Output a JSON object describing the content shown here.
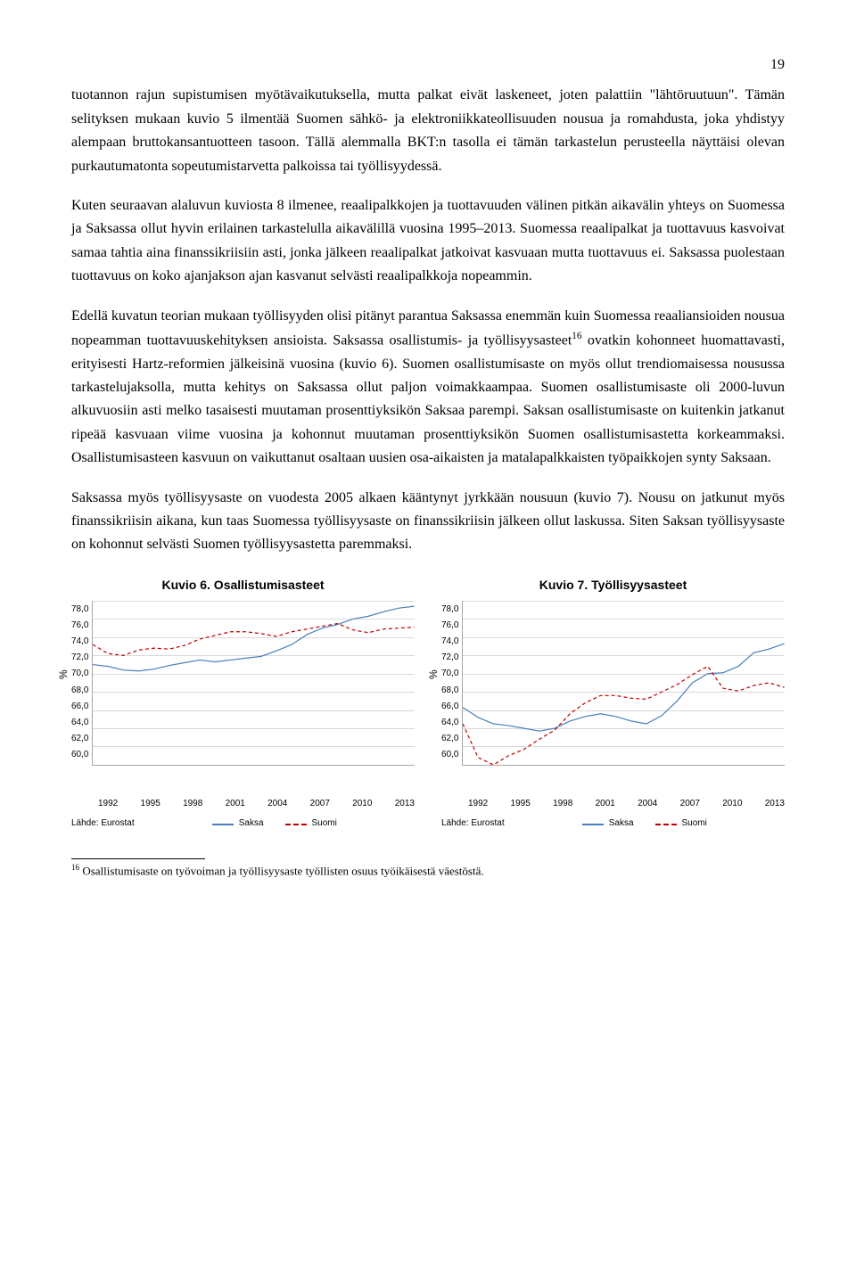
{
  "page_number": "19",
  "paragraphs": {
    "p1": "tuotannon rajun supistumisen myötävaikutuksella, mutta palkat eivät laskeneet, joten palattiin \"lähtöruutuun\". Tämän selityksen mukaan kuvio 5 ilmentää Suomen sähkö- ja elektroniikkateollisuuden nousua ja romahdusta, joka yhdistyy alempaan bruttokansantuotteen tasoon. Tällä alemmalla BKT:n tasolla ei tämän tarkastelun perusteella näyttäisi olevan purkautumatonta sopeutumistarvetta palkoissa tai työllisyydessä.",
    "p2": "Kuten seuraavan alaluvun kuviosta 8 ilmenee, reaalipalkkojen ja tuottavuuden välinen pitkän aikavälin yhteys on Suomessa ja Saksassa ollut hyvin erilainen tarkastelulla aikavälillä vuosina 1995–2013. Suomessa reaalipalkat ja tuottavuus kasvoivat samaa tahtia aina finanssikriisiin asti, jonka jälkeen reaalipalkat jatkoivat kasvuaan mutta tuottavuus ei. Saksassa puolestaan tuottavuus on koko ajanjakson ajan kasvanut selvästi reaalipalkkoja nopeammin.",
    "p3a": "Edellä kuvatun teorian mukaan työllisyyden olisi pitänyt parantua Saksassa enemmän kuin Suomessa reaaliansioiden nousua nopeamman tuottavuuskehityksen ansioista. Saksassa osallistumis- ja työllisyysasteet",
    "p3b": " ovatkin kohonneet huomattavasti, erityisesti Hartz-reformien jälkeisinä vuosina (kuvio 6). Suomen osallistumisaste on myös ollut trendiomaisessa nousussa tarkastelujaksolla, mutta kehitys on Saksassa ollut paljon voimakkaampaa. Suomen osallistumisaste oli 2000-luvun alkuvuosiin asti melko tasaisesti muutaman prosenttiyksikön Saksaa parempi. Saksan osallistumisaste on kuitenkin jatkanut ripeää kasvuaan viime vuosina ja kohonnut muutaman prosenttiyksikön Suomen osallistumisastetta korkeammaksi. Osallistumisasteen kasvuun on vaikuttanut osaltaan uusien osa-aikaisten ja matalapalkkaisten työpaikkojen synty Saksaan.",
    "p4": "Saksassa myös työllisyysaste on vuodesta 2005 alkaen kääntynyt jyrkkään nousuun (kuvio 7). Nousu on jatkunut myös finanssikriisin aikana, kun taas Suomessa työllisyysaste on finanssikriisin jälkeen ollut laskussa. Siten Saksan työllisyysaste on kohonnut selvästi Suomen työllisyysastetta paremmaksi."
  },
  "footnote_ref": "16",
  "footnote_text": " Osallistumisaste on työvoiman ja työllisyysaste työllisten osuus työikäisestä väestöstä.",
  "chart_common": {
    "y_label": "%",
    "y_ticks": [
      "78,0",
      "76,0",
      "74,0",
      "72,0",
      "70,0",
      "68,0",
      "66,0",
      "64,0",
      "62,0",
      "60,0"
    ],
    "x_ticks": [
      "1992",
      "1995",
      "1998",
      "2001",
      "2004",
      "2007",
      "2010",
      "2013"
    ],
    "source_label": "Lähde: Eurostat",
    "series1_name": "Saksa",
    "series2_name": "Suomi",
    "series1_color": "#4a7ebb",
    "series2_color": "#c00000",
    "grid_color": "#d9d9d9",
    "border_color": "#a6a6a6",
    "ylim": [
      60,
      78
    ]
  },
  "chart6": {
    "title": "Kuvio 6. Osallistumisasteet",
    "saksa": [
      71.0,
      70.8,
      70.4,
      70.3,
      70.5,
      70.9,
      71.2,
      71.5,
      71.3,
      71.5,
      71.7,
      71.9,
      72.5,
      73.2,
      74.3,
      75.0,
      75.4,
      76.0,
      76.3,
      76.8,
      77.2,
      77.4
    ],
    "suomi": [
      73.2,
      72.2,
      72.0,
      72.6,
      72.8,
      72.7,
      73.1,
      73.8,
      74.2,
      74.6,
      74.6,
      74.4,
      74.1,
      74.6,
      74.9,
      75.2,
      75.5,
      74.8,
      74.5,
      74.9,
      75.0,
      75.1
    ]
  },
  "chart7": {
    "title": "Kuvio 7. Työllisyysasteet",
    "saksa": [
      66.3,
      65.2,
      64.5,
      64.3,
      64.0,
      63.7,
      64.0,
      64.8,
      65.3,
      65.6,
      65.3,
      64.8,
      64.5,
      65.4,
      67.0,
      69.0,
      70.0,
      70.1,
      70.8,
      72.3,
      72.7,
      73.3
    ],
    "suomi": [
      64.5,
      60.8,
      60.0,
      61.0,
      61.7,
      62.8,
      63.8,
      65.6,
      66.8,
      67.6,
      67.6,
      67.3,
      67.2,
      68.0,
      68.8,
      69.9,
      70.8,
      68.4,
      68.1,
      68.7,
      69.0,
      68.5
    ]
  }
}
